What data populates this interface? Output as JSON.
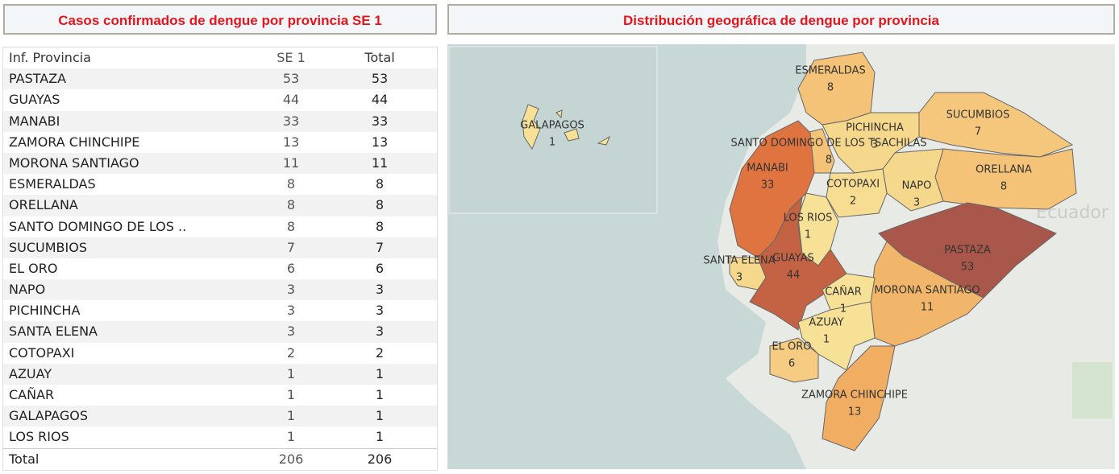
{
  "table": {
    "title": "Casos confirmados de dengue por provincia SE 1",
    "header": [
      "Inf. Provincia",
      "SE 1",
      "Total"
    ],
    "rows": [
      [
        "PASTAZA",
        53,
        53
      ],
      [
        "GUAYAS",
        44,
        44
      ],
      [
        "MANABI",
        33,
        33
      ],
      [
        "ZAMORA CHINCHIPE",
        13,
        13
      ],
      [
        "MORONA SANTIAGO",
        11,
        11
      ],
      [
        "ESMERALDAS",
        8,
        8
      ],
      [
        "ORELLANA",
        8,
        8
      ],
      [
        "SANTO DOMINGO DE LOS ..",
        8,
        8
      ],
      [
        "SUCUMBIOS",
        7,
        7
      ],
      [
        "EL ORO",
        6,
        6
      ],
      [
        "NAPO",
        3,
        3
      ],
      [
        "PICHINCHA",
        3,
        3
      ],
      [
        "SANTA ELENA",
        3,
        3
      ],
      [
        "COTOPAXI",
        2,
        2
      ],
      [
        "AZUAY",
        1,
        1
      ],
      [
        "CAÑAR",
        1,
        1
      ],
      [
        "GALAPAGOS",
        1,
        1
      ],
      [
        "LOS RIOS",
        1,
        1
      ]
    ],
    "total": [
      "Total",
      206,
      206
    ]
  },
  "map": {
    "title": "Distribución geográfica de dengue por provincia",
    "background_label": "Ecuador",
    "regions": [
      {
        "name": "ESMERALDAS",
        "value": 8
      },
      {
        "name": "SUCUMBIOS",
        "value": 7
      },
      {
        "name": "ORELLANA",
        "value": 8
      },
      {
        "name": "NAPO",
        "value": 3
      },
      {
        "name": "PICHINCHA",
        "value": 3
      },
      {
        "name": "SANTO DOMINGO DE LOS TSACHILAS",
        "value": 8
      },
      {
        "name": "COTOPAXI",
        "value": 2
      },
      {
        "name": "MANABI",
        "value": 33
      },
      {
        "name": "LOS RIOS",
        "value": 1
      },
      {
        "name": "SANTA ELENA",
        "value": 3
      },
      {
        "name": "GUAYAS",
        "value": 44
      },
      {
        "name": "PASTAZA",
        "value": 53
      },
      {
        "name": "MORONA SANTIAGO",
        "value": 11
      },
      {
        "name": "CAÑAR",
        "value": 1
      },
      {
        "name": "AZUAY",
        "value": 1
      },
      {
        "name": "EL ORO",
        "value": 6
      },
      {
        "name": "ZAMORA CHINCHIPE",
        "value": 13
      },
      {
        "name": "GALAPAGOS",
        "value": 1
      }
    ]
  }
}
